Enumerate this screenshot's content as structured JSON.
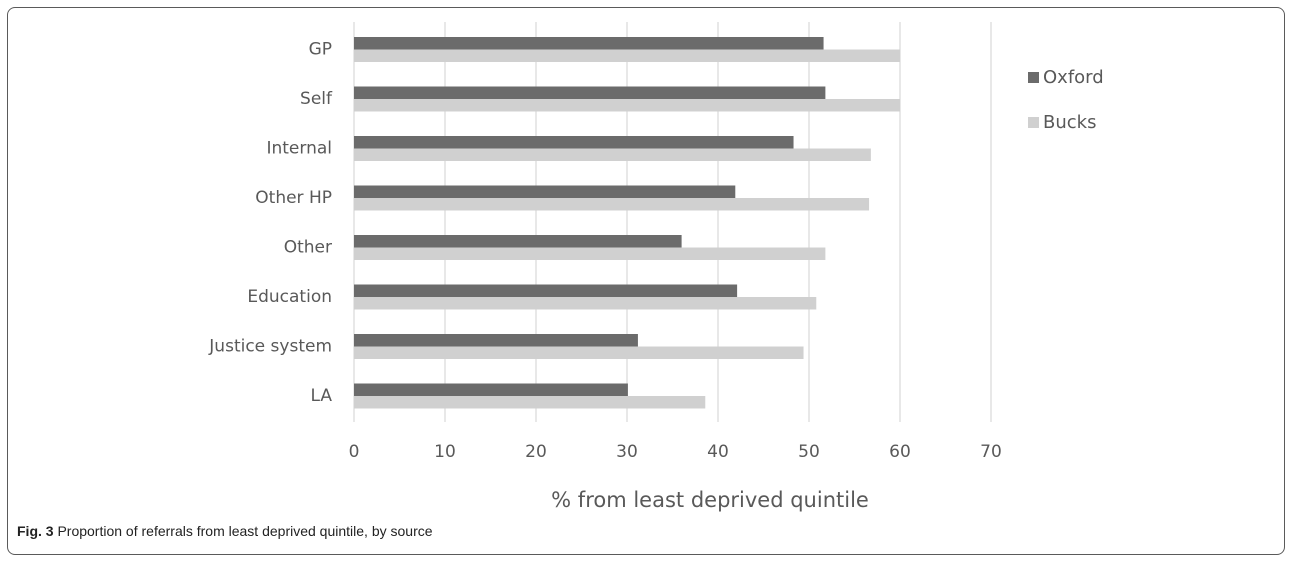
{
  "figure": {
    "caption_label": "Fig. 3",
    "caption_text": " Proportion of referrals from least deprived quintile, by source"
  },
  "chart_data": {
    "type": "bar",
    "orientation": "horizontal",
    "categories": [
      "GP",
      "Self",
      "Internal",
      "Other HP",
      "Other",
      "Education",
      "Justice system",
      "LA"
    ],
    "series": [
      {
        "name": "Oxford",
        "color": "#6b6b6b",
        "values": [
          51.6,
          51.8,
          48.3,
          41.9,
          36.0,
          42.1,
          31.2,
          30.1
        ]
      },
      {
        "name": "Bucks",
        "color": "#d0d0d0",
        "values": [
          60.0,
          60.0,
          56.8,
          56.6,
          51.8,
          50.8,
          49.4,
          38.6
        ]
      }
    ],
    "xlabel": "% from least deprived quintile",
    "ylabel": "",
    "xlim": [
      0,
      70
    ],
    "xticks": [
      0,
      10,
      20,
      30,
      40,
      50,
      60,
      70
    ],
    "grid": true,
    "legend_position": "right"
  }
}
